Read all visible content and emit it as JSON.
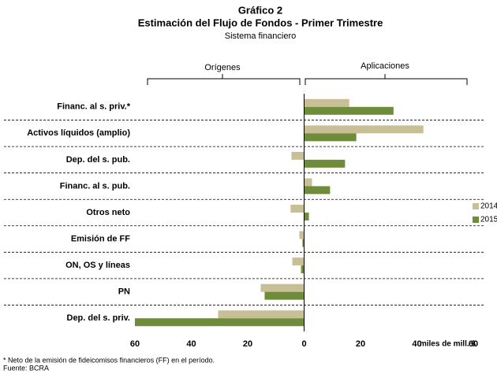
{
  "chart_data": {
    "type": "hbar",
    "title": "Gráfico 2",
    "subtitle": "Estimación del Flujo de Fondos - Primer Trimestre",
    "subtitle_2": "Sistema financiero",
    "left_group_label": "Orígenes",
    "right_group_label": "Aplicaciones",
    "categories": [
      "Financ. al s. priv.*",
      "Activos líquidos (amplio)",
      "Dep. del s. pub.",
      "Financ. al s. pub.",
      "Otros neto",
      "Emisión de FF",
      "ON, OS y líneas",
      "PN",
      "Dep. del s. priv."
    ],
    "series": [
      {
        "name": "2014",
        "color": "#c9bf97",
        "values": [
          16,
          42.3,
          -4.5,
          2.8,
          -4.8,
          -1.7,
          -4.2,
          -15.4,
          -30.5
        ]
      },
      {
        "name": "2015",
        "color": "#6f8c3a",
        "values": [
          31.7,
          18.5,
          14.5,
          9.2,
          1.7,
          -0.6,
          -1.1,
          -14,
          -60
        ]
      }
    ],
    "xlim": [
      -60,
      60
    ],
    "xticks": [
      {
        "value": -60,
        "label": "60"
      },
      {
        "value": -40,
        "label": "40"
      },
      {
        "value": -20,
        "label": "20"
      },
      0,
      20,
      40,
      60
    ],
    "xlabel": "miles de mill. $",
    "footnote": "* Neto de la emisión de fideicomisos financieros (FF) en el período.",
    "source": "Fuente: BCRA",
    "legend": "right"
  }
}
